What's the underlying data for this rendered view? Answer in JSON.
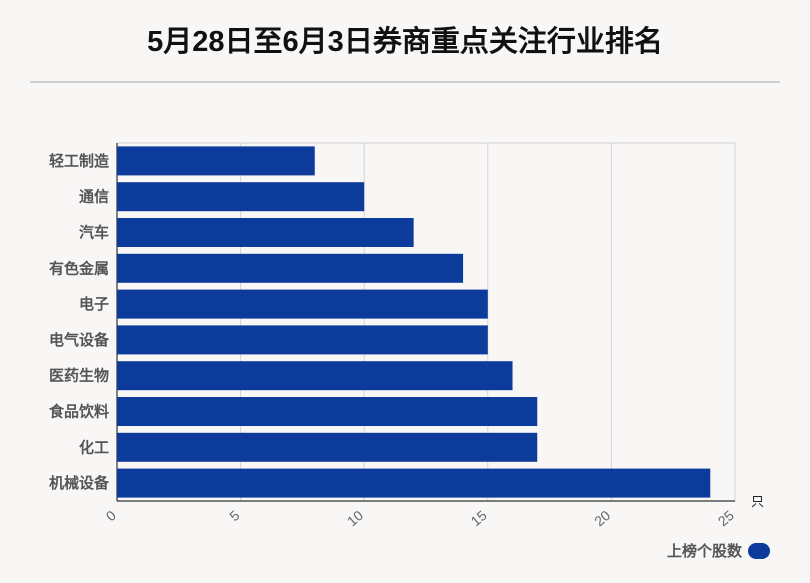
{
  "title": "5月28日至6月3日券商重点关注行业排名",
  "chart_data": {
    "type": "bar",
    "orientation": "horizontal",
    "categories": [
      "轻工制造",
      "通信",
      "汽车",
      "有色金属",
      "电子",
      "电气设备",
      "医药生物",
      "食品饮料",
      "化工",
      "机械设备"
    ],
    "series": [
      {
        "name": "上榜个股数",
        "values": [
          8,
          10,
          12,
          14,
          15,
          15,
          16,
          17,
          17,
          24
        ],
        "color": "#0d3b9c"
      }
    ],
    "xlim": [
      0,
      25
    ],
    "x_ticks": [
      "0",
      "5",
      "10",
      "15",
      "20",
      "25"
    ],
    "x_unit": "只",
    "grid": true,
    "legend_position": "bottom-right"
  }
}
